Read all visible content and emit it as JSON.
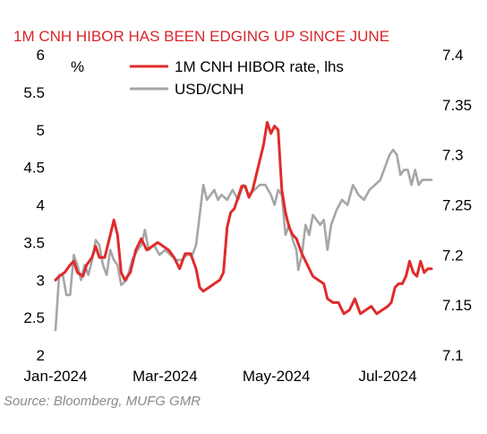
{
  "chart_data": {
    "type": "line",
    "title": "1M CNH HIBOR HAS BEEN EDGING UP SINCE JUNE",
    "source": "Source: Bloomberg, MUFG GMR",
    "left_axis_unit": "%",
    "x_tick_labels": [
      "Jan-2024",
      "Mar-2024",
      "May-2024",
      "Jul-2024"
    ],
    "x_ticks": [
      "2024-01-01",
      "2024-03-01",
      "2024-05-01",
      "2024-07-01"
    ],
    "xlim": [
      "2024-01-01",
      "2024-07-25"
    ],
    "y_left": {
      "lim": [
        2,
        6
      ],
      "ticks": [
        "2",
        "2.5",
        "3",
        "3.5",
        "4",
        "4.5",
        "5",
        "5.5",
        "6"
      ]
    },
    "y_right": {
      "lim": [
        7.1,
        7.4
      ],
      "ticks": [
        "7.1",
        "7.15",
        "7.2",
        "7.25",
        "7.3",
        "7.35",
        "7.4"
      ]
    },
    "grid": false,
    "legend_position": "top",
    "series": [
      {
        "name": "1M CNH HIBOR rate, lhs",
        "axis": "left",
        "color": "#e02b2b",
        "points": [
          [
            "2024-01-01",
            3.0
          ],
          [
            "2024-01-03",
            3.05
          ],
          [
            "2024-01-06",
            3.1
          ],
          [
            "2024-01-09",
            3.2
          ],
          [
            "2024-01-11",
            3.25
          ],
          [
            "2024-01-13",
            3.1
          ],
          [
            "2024-01-16",
            3.05
          ],
          [
            "2024-01-18",
            3.2
          ],
          [
            "2024-01-21",
            3.3
          ],
          [
            "2024-01-23",
            3.45
          ],
          [
            "2024-01-25",
            3.3
          ],
          [
            "2024-01-28",
            3.3
          ],
          [
            "2024-01-31",
            3.6
          ],
          [
            "2024-02-02",
            3.8
          ],
          [
            "2024-02-04",
            3.6
          ],
          [
            "2024-02-06",
            3.1
          ],
          [
            "2024-02-08",
            3.0
          ],
          [
            "2024-02-11",
            3.1
          ],
          [
            "2024-02-14",
            3.4
          ],
          [
            "2024-02-17",
            3.55
          ],
          [
            "2024-02-20",
            3.4
          ],
          [
            "2024-02-23",
            3.45
          ],
          [
            "2024-02-26",
            3.5
          ],
          [
            "2024-02-29",
            3.45
          ],
          [
            "2024-03-03",
            3.4
          ],
          [
            "2024-03-06",
            3.3
          ],
          [
            "2024-03-09",
            3.15
          ],
          [
            "2024-03-12",
            3.35
          ],
          [
            "2024-03-15",
            3.35
          ],
          [
            "2024-03-18",
            3.15
          ],
          [
            "2024-03-20",
            2.9
          ],
          [
            "2024-03-22",
            2.85
          ],
          [
            "2024-03-25",
            2.9
          ],
          [
            "2024-03-28",
            2.95
          ],
          [
            "2024-03-31",
            3.0
          ],
          [
            "2024-04-02",
            3.1
          ],
          [
            "2024-04-04",
            3.7
          ],
          [
            "2024-04-06",
            3.9
          ],
          [
            "2024-04-08",
            3.95
          ],
          [
            "2024-04-10",
            4.1
          ],
          [
            "2024-04-12",
            4.25
          ],
          [
            "2024-04-14",
            4.25
          ],
          [
            "2024-04-16",
            4.1
          ],
          [
            "2024-04-18",
            4.2
          ],
          [
            "2024-04-20",
            4.4
          ],
          [
            "2024-04-22",
            4.6
          ],
          [
            "2024-04-24",
            4.8
          ],
          [
            "2024-04-26",
            5.1
          ],
          [
            "2024-04-28",
            4.95
          ],
          [
            "2024-04-30",
            5.05
          ],
          [
            "2024-05-02",
            5.0
          ],
          [
            "2024-05-04",
            4.2
          ],
          [
            "2024-05-06",
            3.9
          ],
          [
            "2024-05-08",
            3.7
          ],
          [
            "2024-05-10",
            3.6
          ],
          [
            "2024-05-12",
            3.55
          ],
          [
            "2024-05-15",
            3.35
          ],
          [
            "2024-05-18",
            3.2
          ],
          [
            "2024-05-21",
            3.05
          ],
          [
            "2024-05-24",
            3.0
          ],
          [
            "2024-05-27",
            2.95
          ],
          [
            "2024-05-29",
            2.75
          ],
          [
            "2024-06-01",
            2.7
          ],
          [
            "2024-06-04",
            2.7
          ],
          [
            "2024-06-07",
            2.55
          ],
          [
            "2024-06-10",
            2.6
          ],
          [
            "2024-06-13",
            2.75
          ],
          [
            "2024-06-16",
            2.55
          ],
          [
            "2024-06-19",
            2.6
          ],
          [
            "2024-06-22",
            2.65
          ],
          [
            "2024-06-25",
            2.55
          ],
          [
            "2024-06-28",
            2.6
          ],
          [
            "2024-07-01",
            2.65
          ],
          [
            "2024-07-03",
            2.7
          ],
          [
            "2024-07-05",
            2.9
          ],
          [
            "2024-07-07",
            2.95
          ],
          [
            "2024-07-09",
            2.95
          ],
          [
            "2024-07-11",
            3.05
          ],
          [
            "2024-07-13",
            3.25
          ],
          [
            "2024-07-15",
            3.1
          ],
          [
            "2024-07-17",
            3.05
          ],
          [
            "2024-07-19",
            3.25
          ],
          [
            "2024-07-21",
            3.1
          ],
          [
            "2024-07-23",
            3.15
          ],
          [
            "2024-07-25",
            3.15
          ]
        ]
      },
      {
        "name": "USD/CNH",
        "axis": "right",
        "color": "#a6a6a6",
        "points": [
          [
            "2024-01-01",
            7.125
          ],
          [
            "2024-01-03",
            7.18
          ],
          [
            "2024-01-05",
            7.18
          ],
          [
            "2024-01-07",
            7.16
          ],
          [
            "2024-01-09",
            7.16
          ],
          [
            "2024-01-11",
            7.2
          ],
          [
            "2024-01-13",
            7.19
          ],
          [
            "2024-01-15",
            7.175
          ],
          [
            "2024-01-17",
            7.19
          ],
          [
            "2024-01-19",
            7.18
          ],
          [
            "2024-01-21",
            7.195
          ],
          [
            "2024-01-23",
            7.215
          ],
          [
            "2024-01-25",
            7.21
          ],
          [
            "2024-01-27",
            7.19
          ],
          [
            "2024-01-29",
            7.18
          ],
          [
            "2024-01-31",
            7.205
          ],
          [
            "2024-02-02",
            7.195
          ],
          [
            "2024-02-04",
            7.19
          ],
          [
            "2024-02-06",
            7.17
          ],
          [
            "2024-02-09",
            7.175
          ],
          [
            "2024-02-12",
            7.195
          ],
          [
            "2024-02-15",
            7.205
          ],
          [
            "2024-02-17",
            7.21
          ],
          [
            "2024-02-19",
            7.225
          ],
          [
            "2024-02-21",
            7.205
          ],
          [
            "2024-02-24",
            7.21
          ],
          [
            "2024-02-27",
            7.2
          ],
          [
            "2024-03-01",
            7.205
          ],
          [
            "2024-03-04",
            7.2
          ],
          [
            "2024-03-07",
            7.195
          ],
          [
            "2024-03-10",
            7.195
          ],
          [
            "2024-03-13",
            7.2
          ],
          [
            "2024-03-16",
            7.2
          ],
          [
            "2024-03-18",
            7.21
          ],
          [
            "2024-03-20",
            7.24
          ],
          [
            "2024-03-22",
            7.27
          ],
          [
            "2024-03-24",
            7.255
          ],
          [
            "2024-03-26",
            7.26
          ],
          [
            "2024-03-28",
            7.265
          ],
          [
            "2024-03-30",
            7.255
          ],
          [
            "2024-04-01",
            7.26
          ],
          [
            "2024-04-04",
            7.255
          ],
          [
            "2024-04-07",
            7.265
          ],
          [
            "2024-04-10",
            7.255
          ],
          [
            "2024-04-13",
            7.27
          ],
          [
            "2024-04-16",
            7.26
          ],
          [
            "2024-04-19",
            7.265
          ],
          [
            "2024-04-22",
            7.27
          ],
          [
            "2024-04-25",
            7.27
          ],
          [
            "2024-04-28",
            7.26
          ],
          [
            "2024-04-30",
            7.25
          ],
          [
            "2024-05-02",
            7.265
          ],
          [
            "2024-05-04",
            7.26
          ],
          [
            "2024-05-06",
            7.22
          ],
          [
            "2024-05-08",
            7.23
          ],
          [
            "2024-05-10",
            7.215
          ],
          [
            "2024-05-12",
            7.205
          ],
          [
            "2024-05-13",
            7.185
          ],
          [
            "2024-05-15",
            7.2
          ],
          [
            "2024-05-17",
            7.23
          ],
          [
            "2024-05-19",
            7.22
          ],
          [
            "2024-05-21",
            7.24
          ],
          [
            "2024-05-23",
            7.235
          ],
          [
            "2024-05-25",
            7.23
          ],
          [
            "2024-05-27",
            7.235
          ],
          [
            "2024-05-29",
            7.205
          ],
          [
            "2024-05-31",
            7.23
          ],
          [
            "2024-06-03",
            7.245
          ],
          [
            "2024-06-06",
            7.255
          ],
          [
            "2024-06-09",
            7.25
          ],
          [
            "2024-06-12",
            7.27
          ],
          [
            "2024-06-15",
            7.26
          ],
          [
            "2024-06-18",
            7.255
          ],
          [
            "2024-06-21",
            7.265
          ],
          [
            "2024-06-24",
            7.27
          ],
          [
            "2024-06-27",
            7.275
          ],
          [
            "2024-06-30",
            7.29
          ],
          [
            "2024-07-02",
            7.3
          ],
          [
            "2024-07-04",
            7.305
          ],
          [
            "2024-07-06",
            7.3
          ],
          [
            "2024-07-08",
            7.28
          ],
          [
            "2024-07-10",
            7.285
          ],
          [
            "2024-07-12",
            7.285
          ],
          [
            "2024-07-14",
            7.27
          ],
          [
            "2024-07-16",
            7.285
          ],
          [
            "2024-07-18",
            7.27
          ],
          [
            "2024-07-20",
            7.275
          ],
          [
            "2024-07-23",
            7.275
          ],
          [
            "2024-07-25",
            7.275
          ]
        ]
      }
    ]
  }
}
